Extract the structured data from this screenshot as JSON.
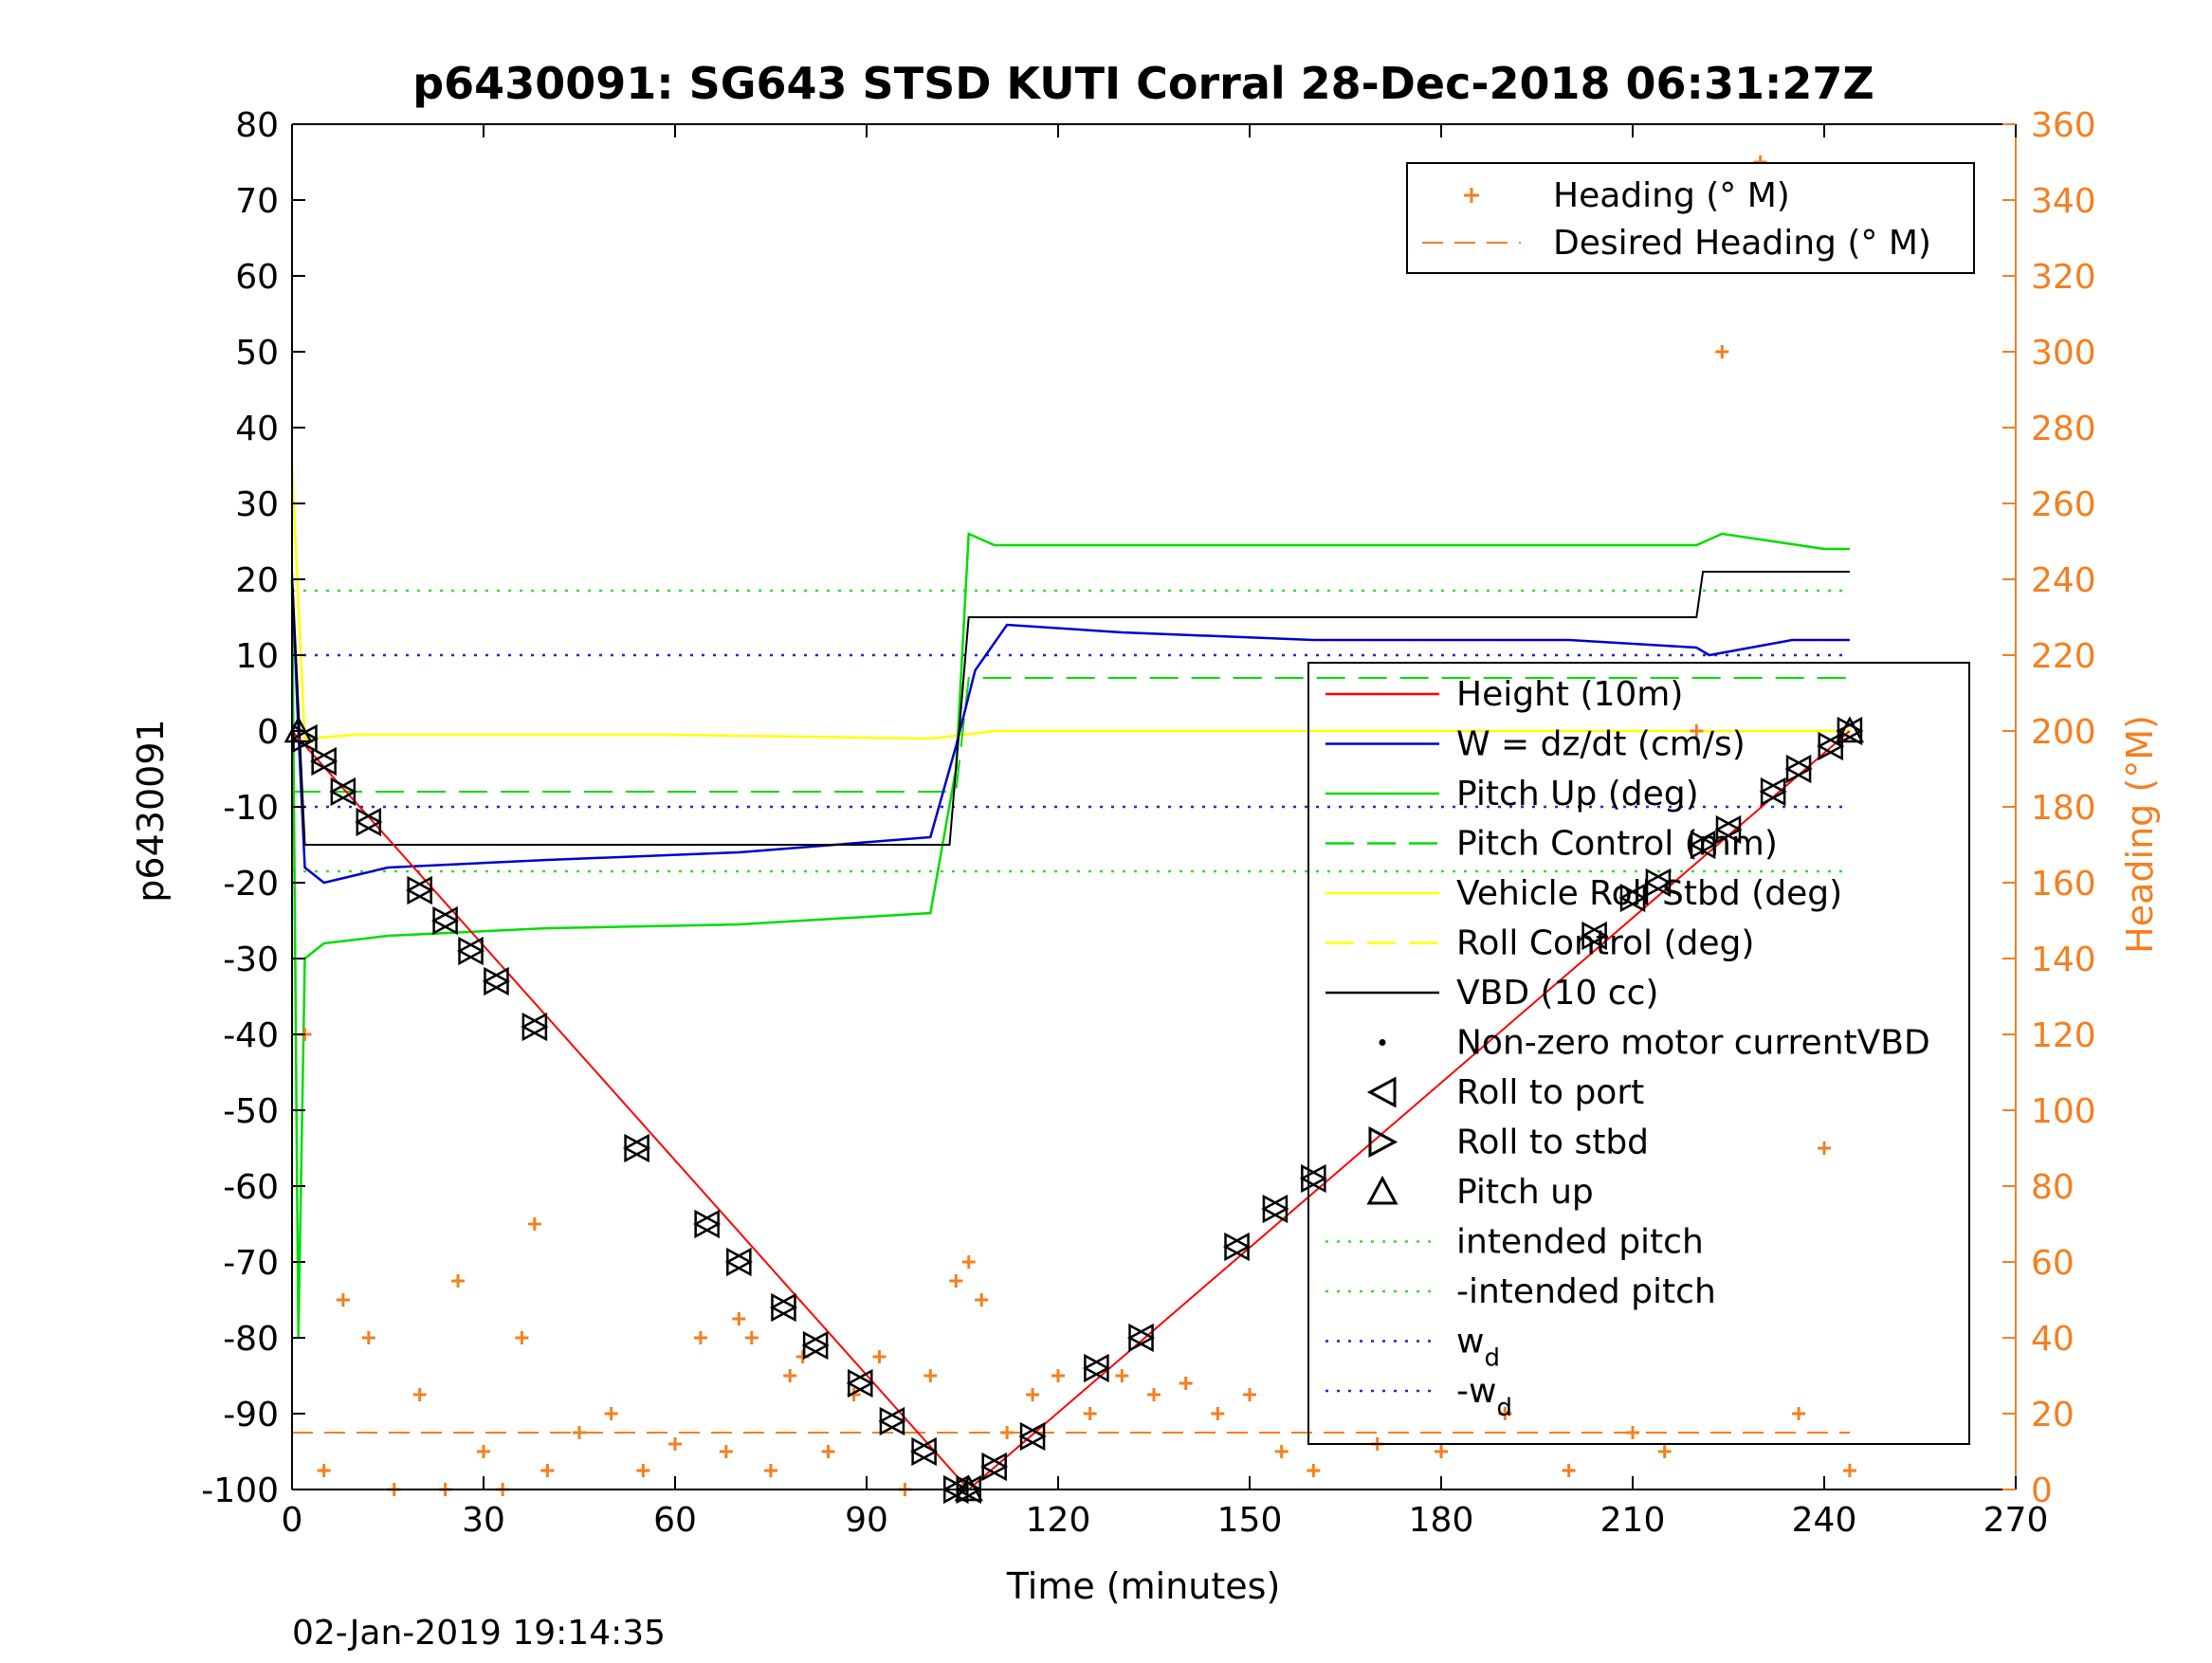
{
  "chart_data": {
    "type": "line",
    "title": "p6430091: SG643 STSD KUTI Corral 28-Dec-2018 06:31:27Z",
    "xlabel": "Time (minutes)",
    "ylabel_left": "p6430091",
    "ylabel_right": "Heading (°M)",
    "xlim": [
      0,
      270
    ],
    "ylim_left": [
      -100,
      80
    ],
    "ylim_right": [
      0,
      360
    ],
    "x_ticks": [
      0,
      30,
      60,
      90,
      120,
      150,
      180,
      210,
      240,
      270
    ],
    "y_ticks_left": [
      80,
      70,
      60,
      50,
      40,
      30,
      20,
      10,
      0,
      -10,
      -20,
      -30,
      -40,
      -50,
      -60,
      -70,
      -80,
      -90,
      -100
    ],
    "y_ticks_right": [
      360,
      340,
      320,
      300,
      280,
      260,
      240,
      220,
      200,
      180,
      160,
      140,
      120,
      100,
      80,
      60,
      40,
      20,
      0
    ],
    "footer_timestamp": "02-Jan-2019 19:14:35",
    "colors": {
      "height": "#ff0000",
      "w": "#0000cc",
      "pitch": "#00dd00",
      "roll": "#ffff00",
      "vbd": "#000000",
      "heading": "#f47f20",
      "intended_pitch": "#33dd33",
      "wd": "#2222dd"
    },
    "legend_heading": {
      "position": "top-right",
      "entries": [
        "Heading (° M)",
        "Desired Heading (° M)"
      ]
    },
    "legend_main": {
      "position": "right",
      "entries": [
        "Height (10m)",
        "W = dz/dt (cm/s)",
        "Pitch Up (deg)",
        "Pitch Control (mm)",
        "Vehicle Roll Stbd (deg)",
        "Roll Control (deg)",
        "VBD (10 cc)",
        "Non-zero motor currentVBD",
        "Roll to port",
        "Roll to stbd",
        "Pitch up",
        "intended pitch",
        "-intended pitch",
        "w",
        "-w"
      ],
      "subscript": "d"
    },
    "series": [
      {
        "name": "Height (10m)",
        "axis": "left",
        "x": [
          0,
          106,
          244
        ],
        "y": [
          0,
          -100,
          0
        ]
      },
      {
        "name": "W = dz/dt (cm/s)",
        "axis": "left",
        "x": [
          0,
          1,
          2,
          5,
          15,
          40,
          70,
          100,
          104,
          107,
          112,
          130,
          160,
          200,
          220,
          222,
          235,
          244
        ],
        "y": [
          20,
          0,
          -18,
          -20,
          -18,
          -17,
          -16,
          -14,
          -2,
          8,
          14,
          13,
          12,
          12,
          11,
          10,
          12,
          12
        ]
      },
      {
        "name": "Pitch Up (deg)",
        "axis": "left",
        "x": [
          0,
          1,
          2,
          5,
          15,
          40,
          70,
          100,
          104,
          106,
          110,
          150,
          200,
          220,
          224,
          240,
          244
        ],
        "y": [
          20,
          -80,
          -30,
          -28,
          -27,
          -26,
          -25.5,
          -24,
          -5,
          26,
          24.5,
          24.5,
          24.5,
          24.5,
          26,
          24,
          24
        ]
      },
      {
        "name": "Pitch Control (mm)",
        "axis": "left",
        "x": [
          0,
          104,
          106,
          244
        ],
        "y": [
          -8,
          -8,
          7,
          7
        ]
      },
      {
        "name": "Vehicle Roll Stbd (deg)",
        "axis": "left",
        "x": [
          0,
          2,
          10,
          60,
          100,
          110,
          160,
          200,
          244
        ],
        "y": [
          35,
          -1,
          -0.5,
          -0.5,
          -1,
          0,
          0,
          0,
          0
        ]
      },
      {
        "name": "VBD (10 cc)",
        "axis": "left",
        "x": [
          0,
          2,
          103,
          106,
          220,
          221,
          244
        ],
        "y": [
          21,
          -15,
          -15,
          15,
          15,
          21,
          21
        ]
      },
      {
        "name": "Roll to port",
        "axis": "left",
        "x": [
          2,
          5,
          8,
          12,
          20,
          24,
          28,
          32,
          38,
          54,
          65,
          70,
          77,
          82,
          89,
          94,
          99,
          104,
          106,
          110,
          116,
          126,
          133,
          148,
          154,
          160,
          204,
          210,
          214,
          221,
          225,
          232,
          236,
          241,
          244
        ],
        "y": [
          -1,
          -4,
          -8,
          -12,
          -21,
          -25,
          -29,
          -33,
          -39,
          -55,
          -65,
          -70,
          -76,
          -81,
          -86,
          -91,
          -95,
          -100,
          -100,
          -97,
          -93,
          -84,
          -80,
          -68,
          -63,
          -59,
          -27,
          -22,
          -20,
          -15,
          -13,
          -8,
          -5,
          -2,
          0
        ]
      },
      {
        "name": "Roll to stbd",
        "axis": "left",
        "x": [
          2,
          5,
          8,
          12,
          20,
          24,
          28,
          32,
          38,
          54,
          65,
          70,
          77,
          82,
          89,
          94,
          99,
          104,
          106,
          110,
          116,
          126,
          133,
          148,
          154,
          160,
          204,
          210,
          214,
          221,
          225,
          232,
          236,
          241,
          244
        ],
        "y": [
          -1,
          -4,
          -8,
          -12,
          -21,
          -25,
          -29,
          -33,
          -39,
          -55,
          -65,
          -70,
          -76,
          -81,
          -86,
          -91,
          -95,
          -100,
          -100,
          -97,
          -93,
          -84,
          -80,
          -68,
          -63,
          -59,
          -27,
          -22,
          -20,
          -15,
          -13,
          -8,
          -5,
          -2,
          0
        ]
      },
      {
        "name": "Pitch up",
        "axis": "left",
        "x": [
          1,
          106,
          244
        ],
        "y": [
          0,
          -100,
          0
        ]
      },
      {
        "name": "intended pitch",
        "axis": "left",
        "x": [
          0,
          244
        ],
        "y": [
          18.5,
          18.5
        ]
      },
      {
        "name": "-intended pitch",
        "axis": "left",
        "x": [
          0,
          244
        ],
        "y": [
          -18.5,
          -18.5
        ]
      },
      {
        "name": "w_d",
        "axis": "left",
        "x": [
          0,
          244
        ],
        "y": [
          10,
          10
        ]
      },
      {
        "name": "-w_d",
        "axis": "left",
        "x": [
          0,
          244
        ],
        "y": [
          -10,
          -10
        ]
      },
      {
        "name": "Desired Heading (° M)",
        "axis": "right",
        "x": [
          0,
          244
        ],
        "y": [
          15,
          15
        ]
      },
      {
        "name": "Heading (° M)",
        "axis": "right",
        "x": [
          2,
          5,
          8,
          12,
          16,
          20,
          24,
          26,
          30,
          33,
          36,
          38,
          40,
          45,
          50,
          55,
          60,
          64,
          68,
          70,
          72,
          75,
          78,
          80,
          84,
          88,
          92,
          96,
          100,
          104,
          106,
          108,
          112,
          116,
          120,
          125,
          130,
          135,
          140,
          145,
          150,
          155,
          160,
          170,
          180,
          190,
          200,
          210,
          215,
          220,
          224,
          230,
          236,
          240,
          244
        ],
        "y": [
          120,
          5,
          50,
          40,
          0,
          25,
          0,
          55,
          10,
          0,
          40,
          70,
          5,
          15,
          20,
          5,
          12,
          40,
          10,
          45,
          40,
          5,
          30,
          35,
          10,
          25,
          35,
          0,
          30,
          55,
          60,
          50,
          15,
          25,
          30,
          20,
          30,
          25,
          28,
          20,
          25,
          10,
          5,
          12,
          10,
          20,
          5,
          15,
          10,
          200,
          300,
          350,
          20,
          90,
          5
        ]
      }
    ]
  }
}
